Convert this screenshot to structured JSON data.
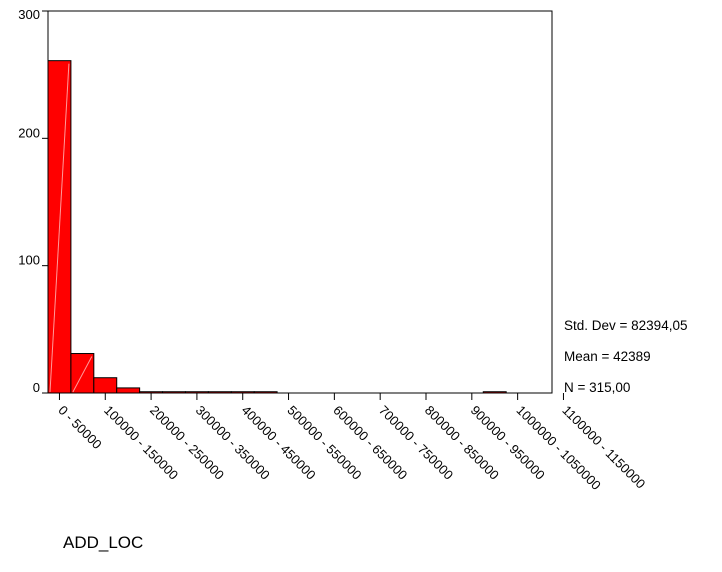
{
  "chart_data": {
    "type": "bar",
    "title": "",
    "xlabel": "ADD_LOC",
    "ylabel": "",
    "ylim": [
      0,
      300
    ],
    "yticks": [
      0,
      100,
      200,
      300
    ],
    "bin_width": 50000,
    "bins": [
      {
        "range": [
          0,
          50000
        ],
        "count": 261
      },
      {
        "range": [
          50000,
          100000
        ],
        "count": 31
      },
      {
        "range": [
          100000,
          150000
        ],
        "count": 12
      },
      {
        "range": [
          150000,
          200000
        ],
        "count": 4
      },
      {
        "range": [
          200000,
          250000
        ],
        "count": 1
      },
      {
        "range": [
          250000,
          300000
        ],
        "count": 1
      },
      {
        "range": [
          300000,
          350000
        ],
        "count": 1
      },
      {
        "range": [
          350000,
          400000
        ],
        "count": 1
      },
      {
        "range": [
          400000,
          450000
        ],
        "count": 1
      },
      {
        "range": [
          450000,
          500000
        ],
        "count": 1
      },
      {
        "range": [
          500000,
          550000
        ],
        "count": 0
      },
      {
        "range": [
          550000,
          600000
        ],
        "count": 0
      },
      {
        "range": [
          600000,
          650000
        ],
        "count": 0
      },
      {
        "range": [
          650000,
          700000
        ],
        "count": 0
      },
      {
        "range": [
          700000,
          750000
        ],
        "count": 0
      },
      {
        "range": [
          750000,
          800000
        ],
        "count": 0
      },
      {
        "range": [
          800000,
          850000
        ],
        "count": 0
      },
      {
        "range": [
          850000,
          900000
        ],
        "count": 0
      },
      {
        "range": [
          900000,
          950000
        ],
        "count": 0
      },
      {
        "range": [
          950000,
          1000000
        ],
        "count": 1
      },
      {
        "range": [
          1000000,
          1050000
        ],
        "count": 0
      },
      {
        "range": [
          1050000,
          1100000
        ],
        "count": 0
      }
    ],
    "x_tick_labels": [
      "0 - 50000",
      "100000 - 150000",
      "200000 - 250000",
      "300000 - 350000",
      "400000 - 450000",
      "500000 - 550000",
      "600000 - 650000",
      "700000 - 750000",
      "800000 - 850000",
      "900000 - 950000",
      "1000000 - 1050000",
      "1100000 - 1150000"
    ],
    "stats": [
      "Std. Dev = 82394,05",
      "Mean = 42389",
      "N = 315,00"
    ],
    "bar_color": "#ff0000",
    "grid": false
  }
}
